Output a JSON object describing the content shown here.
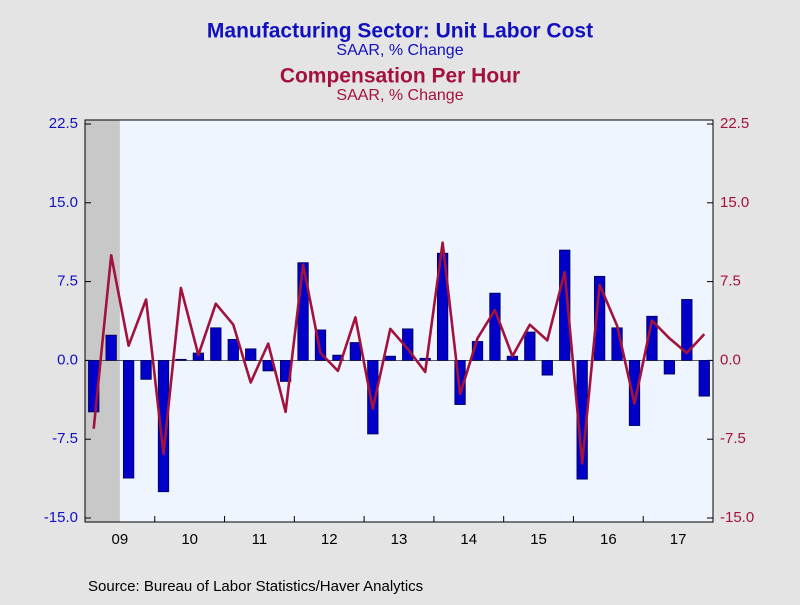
{
  "chart_data": {
    "type": "bar_line",
    "title": "Manufacturing Sector: Unit Labor Cost",
    "subtitle": "SAAR, % Change",
    "title2": "Compensation Per Hour",
    "subtitle2": "SAAR, % Change",
    "source": "Source:  Bureau of Labor Statistics/Haver Analytics",
    "categories": [
      null,
      "09",
      null,
      null,
      null,
      "10",
      null,
      null,
      null,
      "11",
      null,
      null,
      null,
      "12",
      null,
      null,
      null,
      "13",
      null,
      null,
      null,
      "14",
      null,
      null,
      null,
      "15",
      null,
      null,
      null,
      "16",
      null,
      null,
      null,
      "17",
      null,
      null
    ],
    "shaded": [
      0,
      1
    ],
    "series": [
      {
        "name": "Manufacturing Sector: Unit Labor Cost",
        "color": "#0000c8",
        "kind": "bar",
        "axis": "y",
        "values": [
          -4.9,
          2.4,
          -11.2,
          -1.8,
          -12.5,
          0.1,
          0.7,
          3.1,
          2.0,
          1.1,
          -1.0,
          -2.0,
          9.3,
          2.9,
          0.5,
          1.7,
          -7.0,
          0.4,
          3.0,
          0.2,
          10.2,
          -4.2,
          1.8,
          6.4,
          0.4,
          2.7,
          -1.4,
          10.5,
          -11.3,
          8.0,
          3.1,
          -6.2,
          4.2,
          -1.3,
          5.8,
          -3.4
        ]
      },
      {
        "name": "Compensation Per Hour",
        "color": "#a3123c",
        "kind": "line",
        "axis": "y2",
        "values": [
          -6.5,
          10.0,
          1.4,
          5.8,
          -8.9,
          6.9,
          0.5,
          5.4,
          3.4,
          -2.1,
          1.6,
          -4.9,
          9.1,
          0.7,
          -1.0,
          4.1,
          -4.6,
          3.0,
          1.1,
          -1.1,
          11.2,
          -3.2,
          2.1,
          4.8,
          0.4,
          3.4,
          1.9,
          8.4,
          -9.8,
          7.2,
          3.3,
          -4.1,
          3.8,
          2.1,
          0.7,
          2.5
        ]
      }
    ],
    "ylim": [
      -15,
      22.5
    ],
    "yticks": [
      {
        "value": -15,
        "label": "-15.0"
      },
      -7.5,
      {
        "value": 0,
        "label": "0.0"
      },
      7.5,
      {
        "value": 15,
        "label": "15.0"
      },
      22.5
    ],
    "y2lim": [
      -15,
      22.5
    ],
    "y2ticks": [
      {
        "value": -15,
        "label": "-15.0"
      },
      -7.5,
      {
        "value": 0,
        "label": "0.0"
      },
      7.5,
      {
        "value": 15,
        "label": "15.0"
      },
      22.5
    ]
  }
}
